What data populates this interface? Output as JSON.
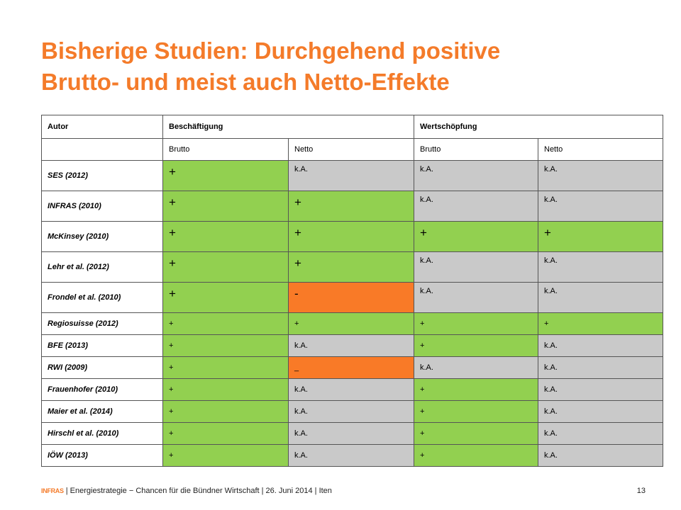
{
  "title": {
    "line1": "Bisherige Studien: Durchgehend positive",
    "line2": "Brutto- und meist auch Netto-Effekte"
  },
  "table": {
    "headers": {
      "autor": "Autor",
      "beschaeftigung": "Beschäftigung",
      "wertschoepfung": "Wertschöpfung"
    },
    "subheaders": [
      "Brutto",
      "Netto",
      "Brutto",
      "Netto"
    ],
    "colors": {
      "green": "#92d050",
      "grey": "#c9c9c9",
      "orange": "#f97a27"
    },
    "rows": [
      {
        "author": "SES (2012)",
        "cells": [
          {
            "v": "+",
            "c": "green"
          },
          {
            "v": "k.A.",
            "c": "grey"
          },
          {
            "v": "k.A.",
            "c": "grey"
          },
          {
            "v": "k.A.",
            "c": "grey"
          }
        ]
      },
      {
        "author": "INFRAS (2010)",
        "cells": [
          {
            "v": "+",
            "c": "green"
          },
          {
            "v": "+",
            "c": "green"
          },
          {
            "v": "k.A.",
            "c": "grey"
          },
          {
            "v": "k.A.",
            "c": "grey"
          }
        ]
      },
      {
        "author": "McKinsey (2010)",
        "cells": [
          {
            "v": "+",
            "c": "green"
          },
          {
            "v": "+",
            "c": "green"
          },
          {
            "v": "+",
            "c": "green"
          },
          {
            "v": "+",
            "c": "green"
          }
        ]
      },
      {
        "author": "Lehr et al.  (2012)",
        "cells": [
          {
            "v": "+",
            "c": "green"
          },
          {
            "v": "+",
            "c": "green"
          },
          {
            "v": "k.A.",
            "c": "grey"
          },
          {
            "v": "k.A.",
            "c": "grey"
          }
        ]
      },
      {
        "author": "Frondel  et al. (2010)",
        "cells": [
          {
            "v": "+",
            "c": "green"
          },
          {
            "v": "-",
            "c": "orange"
          },
          {
            "v": "k.A.",
            "c": "grey"
          },
          {
            "v": "k.A.",
            "c": "grey"
          }
        ]
      },
      {
        "author": "Regiosuisse  (2012)",
        "cells": [
          {
            "v": "+",
            "c": "green"
          },
          {
            "v": "+",
            "c": "green"
          },
          {
            "v": "+",
            "c": "green"
          },
          {
            "v": "+",
            "c": "green"
          }
        ]
      },
      {
        "author": "BFE (2013)",
        "cells": [
          {
            "v": "+",
            "c": "green"
          },
          {
            "v": "k.A.",
            "c": "grey"
          },
          {
            "v": "+",
            "c": "green"
          },
          {
            "v": "k.A.",
            "c": "grey"
          }
        ]
      },
      {
        "author": "RWI (2009)",
        "cells": [
          {
            "v": "+",
            "c": "green"
          },
          {
            "v": "_",
            "c": "orange"
          },
          {
            "v": "k.A.",
            "c": "grey"
          },
          {
            "v": "k.A.",
            "c": "grey"
          }
        ]
      },
      {
        "author": "Frauenhofer  (2010)",
        "cells": [
          {
            "v": "+",
            "c": "green"
          },
          {
            "v": "k.A.",
            "c": "grey"
          },
          {
            "v": "+",
            "c": "green"
          },
          {
            "v": "k.A.",
            "c": "grey"
          }
        ]
      },
      {
        "author": "Maier et al. (2014)",
        "cells": [
          {
            "v": "+",
            "c": "green"
          },
          {
            "v": "k.A.",
            "c": "grey"
          },
          {
            "v": "+",
            "c": "green"
          },
          {
            "v": "k.A.",
            "c": "grey"
          }
        ]
      },
      {
        "author": "Hirschl et al. (2010)",
        "cells": [
          {
            "v": "+",
            "c": "green"
          },
          {
            "v": "k.A.",
            "c": "grey"
          },
          {
            "v": "+",
            "c": "green"
          },
          {
            "v": "k.A.",
            "c": "grey"
          }
        ]
      },
      {
        "author": "IÖW (2013)",
        "cells": [
          {
            "v": "+",
            "c": "green"
          },
          {
            "v": "k.A.",
            "c": "grey"
          },
          {
            "v": "+",
            "c": "green"
          },
          {
            "v": "k.A.",
            "c": "grey"
          }
        ]
      }
    ]
  },
  "footer": {
    "logo": "INFRAS",
    "text": "| Energiestrategie − Chancen für die Bündner Wirtschaft | 26. Juni 2014 | Iten",
    "page": "13"
  }
}
